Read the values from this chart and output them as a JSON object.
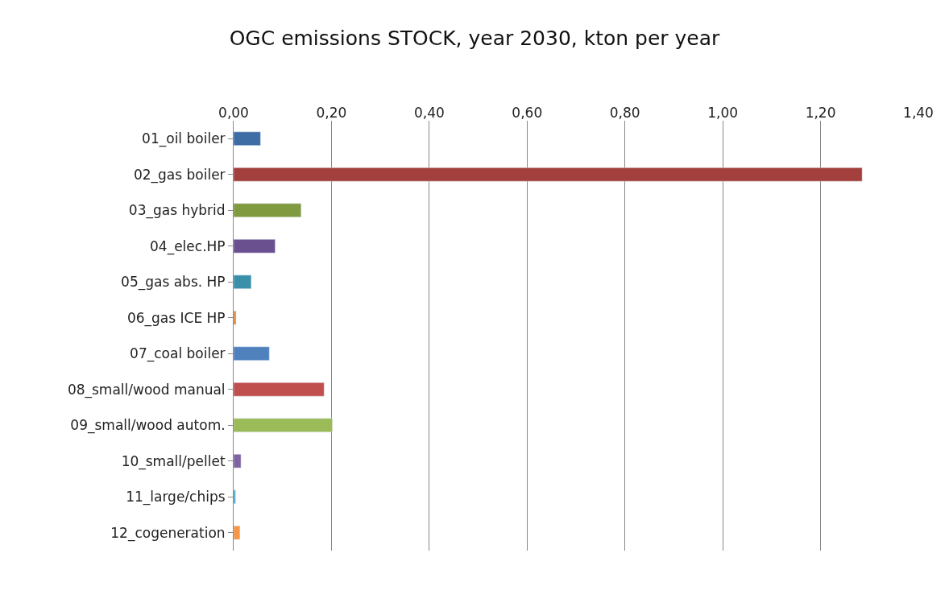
{
  "chart_data": {
    "type": "bar",
    "orientation": "horizontal",
    "title": "OGC emissions STOCK, year 2030, kton per year",
    "categories": [
      "01_oil boiler",
      "02_gas boiler",
      "03_gas hybrid",
      "04_elec.HP",
      "05_gas abs. HP",
      "06_gas ICE HP",
      "07_coal boiler",
      "08_small/wood manual",
      "09_small/wood autom.",
      "10_small/pellet",
      "11_large/chips",
      "12_cogeneration"
    ],
    "values": [
      0.055,
      1.285,
      0.138,
      0.085,
      0.036,
      0.005,
      0.073,
      0.185,
      0.202,
      0.015,
      0.004,
      0.013
    ],
    "colors": [
      "#3d6da4",
      "#a33f3d",
      "#7f9a3f",
      "#6b5090",
      "#3a90a8",
      "#e08a3a",
      "#4f81bd",
      "#c0504d",
      "#9bbb59",
      "#8064a2",
      "#4bacc6",
      "#f79646"
    ],
    "xlim": [
      0,
      1.4
    ],
    "xticks": [
      {
        "value": 0,
        "label": "0,00"
      },
      {
        "value": 0.2,
        "label": "0,20"
      },
      {
        "value": 0.4,
        "label": "0,40"
      },
      {
        "value": 0.6,
        "label": "0,60"
      },
      {
        "value": 0.8,
        "label": "0,80"
      },
      {
        "value": 1.0,
        "label": "1,00"
      },
      {
        "value": 1.2,
        "label": "1,20"
      },
      {
        "value": 1.4,
        "label": "1,40"
      }
    ],
    "grid": "x"
  }
}
